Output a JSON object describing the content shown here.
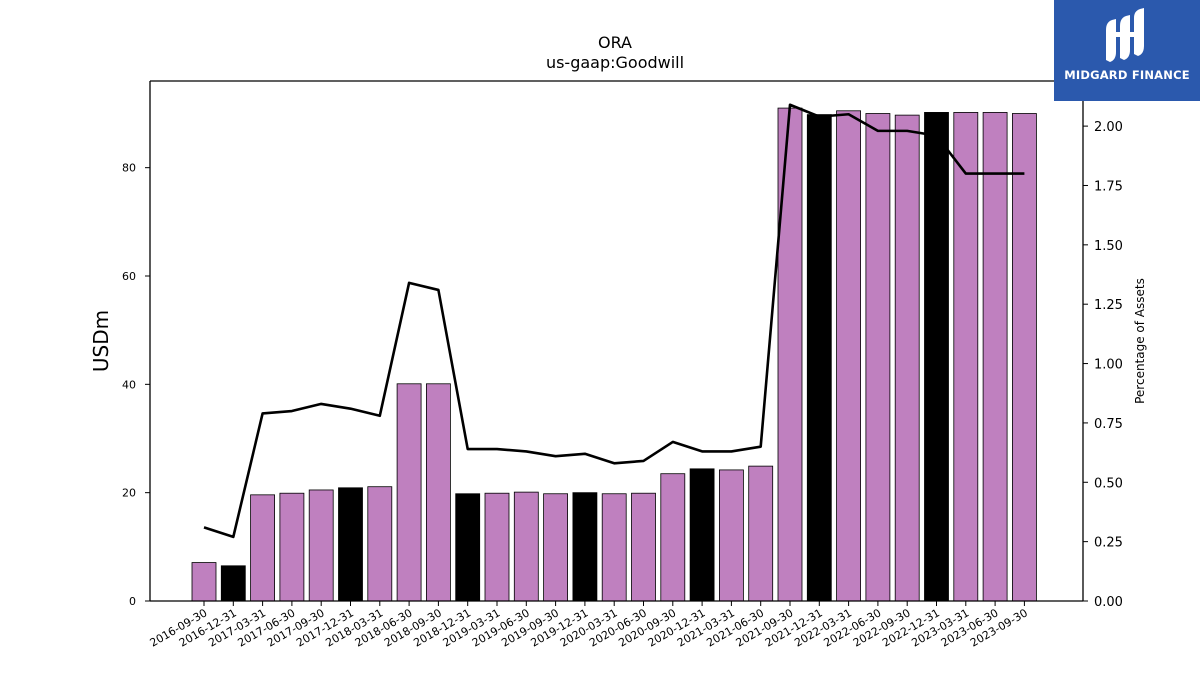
{
  "chart_data": {
    "type": "bar+line",
    "title": "ORA",
    "subtitle": "us-gaap:Goodwill",
    "ylabel": "USDm",
    "y2label": "Percentage of Assets",
    "ylim": [
      0,
      96
    ],
    "y2lim": [
      0,
      2.19
    ],
    "yticks": [
      0,
      20,
      40,
      60,
      80
    ],
    "y2ticks": [
      "0.00",
      "0.25",
      "0.50",
      "0.75",
      "1.00",
      "1.25",
      "1.50",
      "1.75",
      "2.00"
    ],
    "categories": [
      "2016-09-30",
      "2016-12-31",
      "2017-03-31",
      "2017-06-30",
      "2017-09-30",
      "2017-12-31",
      "2018-03-31",
      "2018-06-30",
      "2018-09-30",
      "2018-12-31",
      "2019-03-31",
      "2019-06-30",
      "2019-09-30",
      "2019-12-31",
      "2020-03-31",
      "2020-06-30",
      "2020-09-30",
      "2020-12-31",
      "2021-03-31",
      "2021-06-30",
      "2021-09-30",
      "2021-12-31",
      "2022-03-31",
      "2022-06-30",
      "2022-09-30",
      "2022-12-31",
      "2023-03-31",
      "2023-06-30",
      "2023-09-30"
    ],
    "bars": {
      "values": [
        7.1,
        6.5,
        19.6,
        19.9,
        20.5,
        20.9,
        21.1,
        40.1,
        40.1,
        19.8,
        19.9,
        20.1,
        19.8,
        20.0,
        19.8,
        19.9,
        23.5,
        24.4,
        24.2,
        24.9,
        91.0,
        89.8,
        90.5,
        90.0,
        89.7,
        90.2,
        90.2,
        90.2,
        90.0
      ],
      "year_end_color": "#000000",
      "quarter_color": "#bf80bf",
      "edge_color": "#000000"
    },
    "line": {
      "values": [
        0.31,
        0.27,
        0.79,
        0.8,
        0.83,
        0.81,
        0.78,
        1.34,
        1.31,
        0.64,
        0.64,
        0.63,
        0.61,
        0.62,
        0.58,
        0.59,
        0.67,
        0.63,
        0.63,
        0.65,
        2.09,
        2.04,
        2.05,
        1.98,
        1.98,
        1.96,
        1.8,
        1.8,
        1.8
      ],
      "color": "#000000"
    },
    "grid": false,
    "legend": "none"
  },
  "logo": {
    "text": "MIDGARD FINANCE",
    "background": "#2b59ad"
  }
}
